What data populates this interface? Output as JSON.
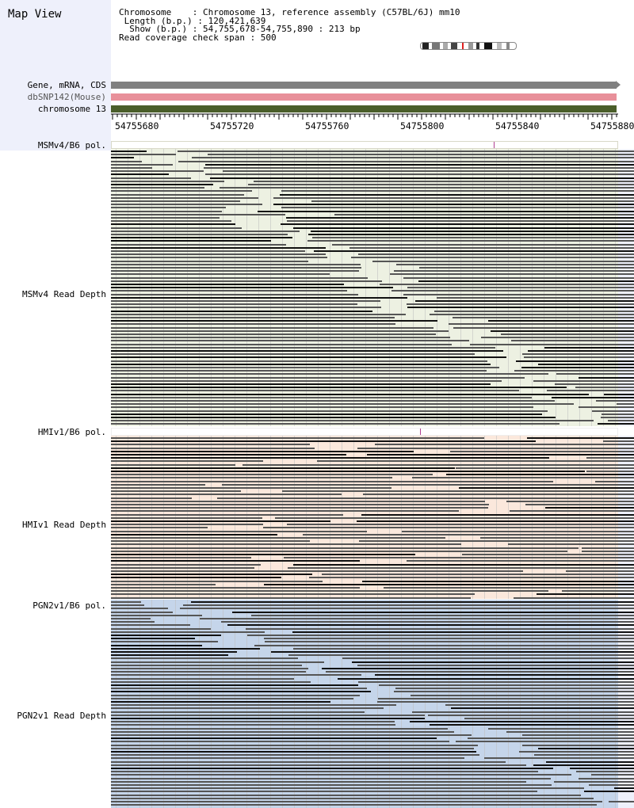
{
  "app": {
    "title": "Map View"
  },
  "info": {
    "chromosome_line": "Chromosome    : Chromosome 13, reference assembly (C57BL/6J) mm10",
    "length_line": " Length (b.p.) : 120,421,639",
    "show_line": "  Show (b.p.) : 54,755,678-54,755,890 : 213 bp",
    "span_line": "Read coverage check span : 500"
  },
  "tracks": [
    {
      "label": "Gene, mRNA, CDS",
      "color": "#808080"
    },
    {
      "label": "dbSNP142(Mouse)",
      "color": "#e8909a"
    },
    {
      "label": "chromosome 13",
      "color": "#4a5e2a"
    }
  ],
  "ruler": {
    "ticks": [
      "54755680",
      "54755720",
      "54755760",
      "54755800",
      "54755840",
      "54755880"
    ]
  },
  "sections": [
    {
      "pol_label": "MSMv4/B6 pol.",
      "depth_label": "MSMv4 Read Depth",
      "bg": "#edf1e2"
    },
    {
      "pol_label": "HMIv1/B6 pol.",
      "depth_label": "HMIv1 Read Depth",
      "bg": "#fbe8dc"
    },
    {
      "pol_label": "PGN2v1/B6 pol.",
      "depth_label": "PGN2v1 Read Depth",
      "bg": "#c5d5ea"
    }
  ]
}
